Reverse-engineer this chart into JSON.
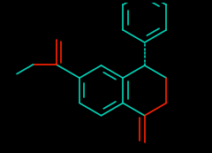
{
  "bg_color": "#000000",
  "bond_color": "#00d4b8",
  "oxygen_color": "#ff2200",
  "line_width": 1.2,
  "figsize": [
    2.4,
    1.73
  ],
  "dpi": 100
}
